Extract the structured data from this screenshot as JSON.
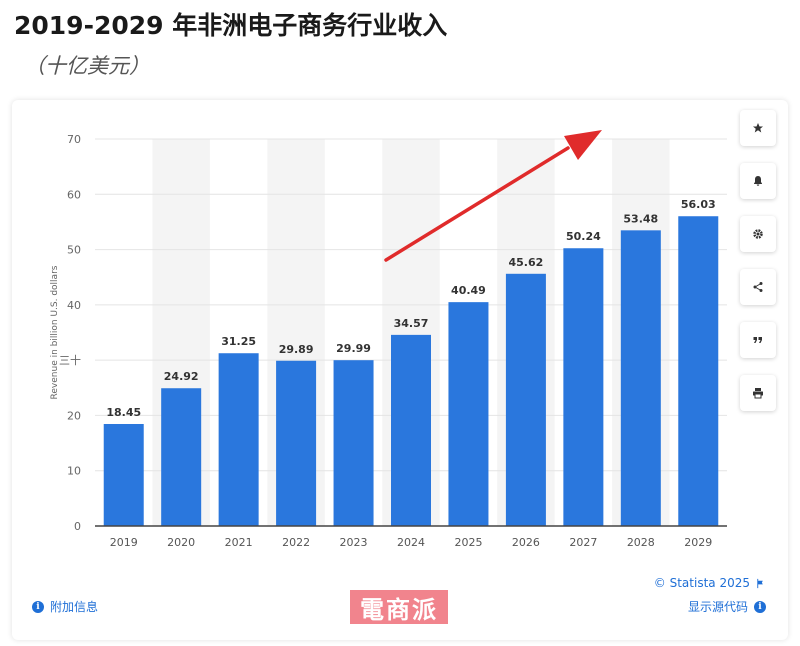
{
  "header": {
    "title": "2019-2029 年非洲电子商务行业收入",
    "subtitle": "（十亿美元）"
  },
  "chart_data": {
    "type": "bar",
    "categories": [
      "2019",
      "2020",
      "2021",
      "2022",
      "2023",
      "2024",
      "2025",
      "2026",
      "2027",
      "2028",
      "2029"
    ],
    "values": [
      18.45,
      24.92,
      31.25,
      29.89,
      29.99,
      34.57,
      40.49,
      45.62,
      50.24,
      53.48,
      56.03
    ],
    "value_labels": [
      "18.45",
      "24.92",
      "31.25",
      "29.89",
      "29.99",
      "34.57",
      "40.49",
      "45.62",
      "50.24",
      "53.48",
      "56.03"
    ],
    "ylabel": "Revenue in billion U.S. dollars",
    "ylim": [
      0,
      70
    ],
    "y_ticks": [
      "0",
      "10",
      "20",
      "三十",
      "40",
      "50",
      "60",
      "70"
    ],
    "grid": true,
    "bar_color": "#2a77dd",
    "annotation": "upward-trend-arrow",
    "annotation_color": "#e02b2b"
  },
  "toolbar": [
    {
      "icon": "star-icon"
    },
    {
      "icon": "bell-icon"
    },
    {
      "icon": "gear-icon"
    },
    {
      "icon": "share-icon"
    },
    {
      "icon": "quote-icon"
    },
    {
      "icon": "print-icon"
    }
  ],
  "footer": {
    "copyright": "© Statista 2025",
    "additional_info": "附加信息",
    "show_source": "显示源代码"
  },
  "watermark": {
    "text": "電商派",
    "color": "#f1848d"
  },
  "colors": {
    "accent": "#1f6fd6",
    "band": "#f4f4f4"
  }
}
